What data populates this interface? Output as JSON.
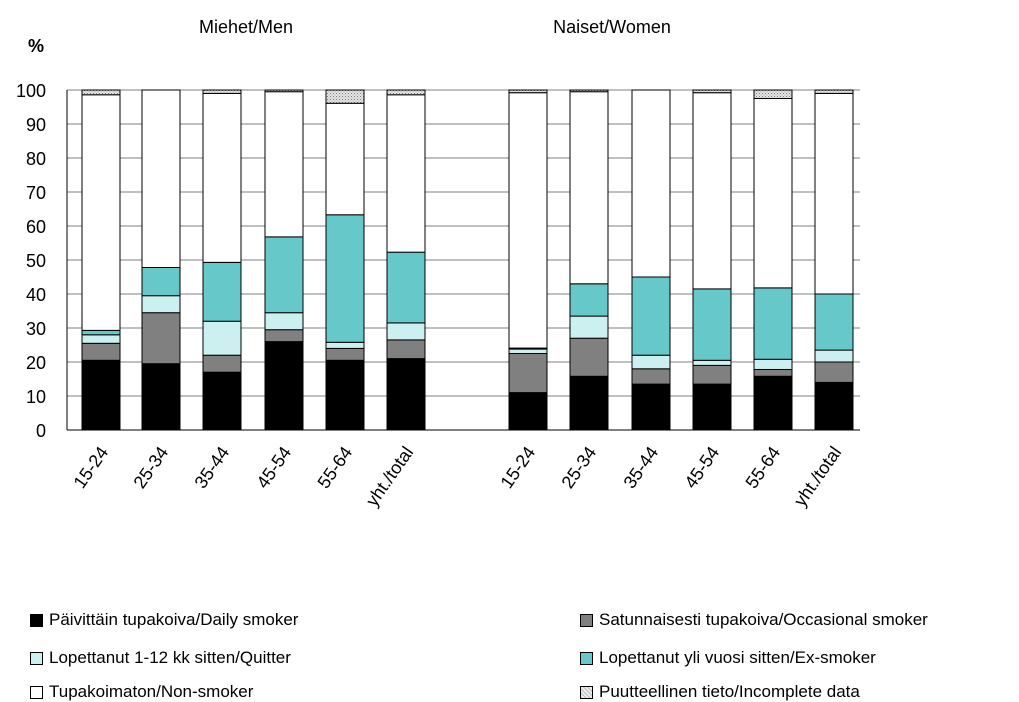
{
  "chart_data": {
    "type": "bar",
    "stacked": true,
    "y_unit": "%",
    "ylim": [
      0,
      100
    ],
    "yticks": [
      0,
      10,
      20,
      30,
      40,
      50,
      60,
      70,
      80,
      90,
      100
    ],
    "grid": true,
    "legend_position": "bottom",
    "groups": [
      {
        "title": "Miehet/Men",
        "categories": [
          "15-24",
          "25-34",
          "35-44",
          "45-54",
          "55-64",
          "yht./total"
        ]
      },
      {
        "title": "Naiset/Women",
        "categories": [
          "15-24",
          "25-34",
          "35-44",
          "45-54",
          "55-64",
          "yht./total"
        ]
      }
    ],
    "series": [
      {
        "name": "Päivittäin tupakoiva/Daily smoker",
        "color": "#000000",
        "values": [
          [
            20.5,
            19.5,
            17,
            26,
            20.5,
            21
          ],
          [
            11,
            15.8,
            13.5,
            13.5,
            15.8,
            14
          ]
        ]
      },
      {
        "name": "Satunnaisesti tupakoiva/Occasional smoker",
        "color": "#808080",
        "values": [
          [
            5,
            15,
            5,
            3.5,
            3.5,
            5.5
          ],
          [
            11.5,
            11.2,
            4.5,
            5.5,
            2,
            6
          ]
        ]
      },
      {
        "name": "Lopettanut 1-12 kk sitten/Quitter",
        "color": "#ccf0f0",
        "values": [
          [
            2.5,
            5,
            10,
            5,
            1.8,
            5
          ],
          [
            1.3,
            6.5,
            4,
            1.5,
            3,
            3.5
          ]
        ]
      },
      {
        "name": "Lopettanut yli vuosi sitten/Ex-smoker",
        "color": "#66c8c8",
        "values": [
          [
            1.3,
            8.3,
            17.3,
            22.3,
            37.5,
            20.8
          ],
          [
            0.3,
            9.5,
            23,
            21,
            21,
            16.5
          ]
        ]
      },
      {
        "name": "Tupakoimaton/Non-smoker",
        "color": "#ffffff",
        "values": [
          [
            69.3,
            52.2,
            49.7,
            42.7,
            32.8,
            46.3
          ],
          [
            75.1,
            56.5,
            55,
            57.7,
            55.7,
            59
          ]
        ]
      },
      {
        "name": "Puutteellinen tieto/Incomplete data",
        "color": "#d9d9d9",
        "pattern": "dots",
        "values": [
          [
            1.4,
            0,
            1,
            0.5,
            3.9,
            1.4
          ],
          [
            0.8,
            0.5,
            0,
            0.8,
            2.5,
            1
          ]
        ]
      }
    ]
  }
}
